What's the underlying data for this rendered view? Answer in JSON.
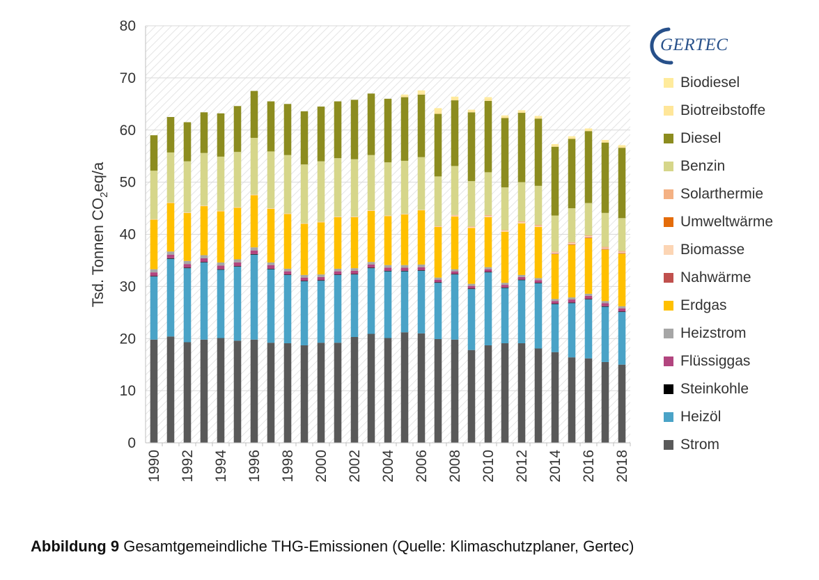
{
  "caption": {
    "bold": "Abbildung 9",
    "text": " Gesamtgemeindliche THG-Emissionen (Quelle: Klimaschutzplaner, Gertec)"
  },
  "logo": {
    "text": "GERTEC"
  },
  "chart_data": {
    "type": "bar",
    "stacked": true,
    "ylabel_main": "Tsd. Tonnen CO",
    "ylabel_sub": "2",
    "ylabel_tail": "eq/a",
    "ylim": [
      0,
      80
    ],
    "yticks": [
      0,
      10,
      20,
      30,
      40,
      50,
      60,
      70,
      80
    ],
    "grid": true,
    "legend_position": "right",
    "categories": [
      "1990",
      "1991",
      "1992",
      "1993",
      "1994",
      "1995",
      "1996",
      "1997",
      "1998",
      "1999",
      "2000",
      "2001",
      "2002",
      "2003",
      "2004",
      "2005",
      "2006",
      "2007",
      "2008",
      "2009",
      "2010",
      "2011",
      "2012",
      "2013",
      "2014",
      "2015",
      "2016",
      "2017",
      "2018"
    ],
    "xtick_labels": [
      "1990",
      "",
      "1992",
      "",
      "1994",
      "",
      "1996",
      "",
      "1998",
      "",
      "2000",
      "",
      "2002",
      "",
      "2004",
      "",
      "2006",
      "",
      "2008",
      "",
      "2010",
      "",
      "2012",
      "",
      "2014",
      "",
      "2016",
      "",
      "2018"
    ],
    "series": [
      {
        "name": "Strom",
        "color": "#595959",
        "values": [
          19.8,
          20.4,
          19.3,
          19.8,
          20.1,
          19.6,
          19.8,
          19.2,
          19.1,
          18.7,
          19.2,
          19.2,
          20.3,
          20.9,
          20.1,
          21.2,
          21.0,
          19.9,
          19.8,
          17.8,
          18.7,
          19.1,
          19.1,
          18.1,
          17.4,
          16.4,
          16.2,
          15.5,
          15.0
        ]
      },
      {
        "name": "Heizöl",
        "color": "#4aa3c7",
        "values": [
          12.1,
          14.9,
          14.2,
          14.8,
          13.1,
          14.2,
          16.3,
          14.1,
          13.1,
          12.3,
          11.9,
          13.0,
          12.0,
          12.6,
          12.8,
          11.7,
          12.0,
          10.8,
          12.5,
          11.7,
          14.0,
          10.6,
          12.1,
          12.5,
          9.2,
          10.4,
          11.3,
          10.6,
          10.1
        ]
      },
      {
        "name": "Steinkohle",
        "color": "#000000",
        "values": [
          0.1,
          0.1,
          0.1,
          0.1,
          0.1,
          0.1,
          0.1,
          0.1,
          0.1,
          0.1,
          0.1,
          0.1,
          0.1,
          0.1,
          0.1,
          0.1,
          0.1,
          0.1,
          0.1,
          0.1,
          0.1,
          0.1,
          0.1,
          0.1,
          0.1,
          0.1,
          0.1,
          0.1,
          0.1
        ]
      },
      {
        "name": "Flüssiggas",
        "color": "#b2457f",
        "values": [
          0.7,
          0.7,
          0.7,
          0.7,
          0.7,
          0.7,
          0.7,
          0.7,
          0.6,
          0.6,
          0.6,
          0.6,
          0.6,
          0.6,
          0.6,
          0.6,
          0.6,
          0.5,
          0.5,
          0.5,
          0.5,
          0.5,
          0.5,
          0.5,
          0.5,
          0.6,
          0.6,
          0.6,
          0.6
        ]
      },
      {
        "name": "Heizstrom",
        "color": "#a6a6a6",
        "values": [
          0.6,
          0.6,
          0.6,
          0.6,
          0.6,
          0.6,
          0.6,
          0.5,
          0.5,
          0.5,
          0.5,
          0.5,
          0.5,
          0.5,
          0.5,
          0.5,
          0.5,
          0.4,
          0.4,
          0.4,
          0.4,
          0.4,
          0.4,
          0.4,
          0.4,
          0.4,
          0.4,
          0.4,
          0.4
        ]
      },
      {
        "name": "Erdgas",
        "color": "#ffc000",
        "values": [
          9.5,
          9.3,
          9.2,
          9.4,
          9.8,
          9.9,
          10.0,
          10.3,
          10.5,
          9.8,
          10.0,
          9.9,
          9.8,
          9.8,
          9.4,
          9.7,
          10.4,
          9.7,
          10.1,
          10.7,
          9.6,
          9.8,
          9.9,
          9.8,
          8.6,
          10.1,
          10.7,
          9.9,
          10.1
        ]
      },
      {
        "name": "Nahwärme",
        "color": "#c0504d",
        "values": [
          0,
          0,
          0,
          0,
          0,
          0,
          0,
          0,
          0,
          0,
          0,
          0,
          0,
          0,
          0,
          0,
          0,
          0,
          0,
          0,
          0,
          0,
          0,
          0,
          0.1,
          0.1,
          0.1,
          0.1,
          0.1
        ]
      },
      {
        "name": "Biomasse",
        "color": "#fcd5b4",
        "values": [
          0.1,
          0.1,
          0.1,
          0.1,
          0.1,
          0.1,
          0.1,
          0.1,
          0.1,
          0.1,
          0.1,
          0.1,
          0.1,
          0.1,
          0.1,
          0.1,
          0.1,
          0.1,
          0.2,
          0.2,
          0.2,
          0.2,
          0.2,
          0.2,
          0.2,
          0.2,
          0.2,
          0.2,
          0.2
        ]
      },
      {
        "name": "Umweltwärme",
        "color": "#e46c0a",
        "values": [
          0,
          0,
          0,
          0,
          0,
          0,
          0,
          0,
          0,
          0,
          0,
          0,
          0,
          0,
          0,
          0,
          0,
          0,
          0,
          0,
          0,
          0,
          0,
          0,
          0,
          0,
          0,
          0,
          0
        ]
      },
      {
        "name": "Solarthermie",
        "color": "#f4b183",
        "values": [
          0,
          0,
          0,
          0,
          0,
          0,
          0,
          0,
          0,
          0,
          0,
          0,
          0,
          0,
          0,
          0,
          0,
          0.1,
          0.1,
          0.1,
          0.2,
          0.1,
          0.2,
          0.2,
          0.2,
          0.2,
          0.2,
          0.2,
          0.2
        ]
      },
      {
        "name": "Benzin",
        "color": "#d6d68a",
        "values": [
          9.3,
          9.6,
          9.8,
          10.1,
          10.4,
          10.6,
          10.9,
          10.9,
          11.2,
          11.3,
          11.6,
          11.2,
          11.0,
          10.6,
          10.2,
          10.2,
          10.1,
          9.5,
          9.4,
          8.7,
          8.2,
          8.2,
          7.5,
          7.5,
          6.9,
          6.5,
          6.2,
          6.5,
          6.3
        ]
      },
      {
        "name": "Diesel",
        "color": "#8c8c1f",
        "values": [
          6.8,
          6.8,
          7.5,
          7.8,
          8.3,
          8.8,
          9.0,
          9.6,
          9.8,
          10.2,
          10.5,
          10.9,
          11.4,
          11.8,
          12.2,
          12.2,
          12.0,
          12.0,
          12.6,
          13.2,
          13.7,
          13.3,
          13.3,
          12.9,
          13.2,
          13.3,
          13.8,
          13.5,
          13.5
        ]
      },
      {
        "name": "Biotreibstoffe",
        "color": "#ffe699",
        "values": [
          0,
          0,
          0,
          0,
          0,
          0,
          0,
          0,
          0,
          0,
          0,
          0,
          0,
          0,
          0,
          0.3,
          0.4,
          0.6,
          0.4,
          0.3,
          0.4,
          0.3,
          0.3,
          0.3,
          0.3,
          0.3,
          0.3,
          0.3,
          0.3
        ]
      },
      {
        "name": "Biodiesel",
        "color": "#ffeb9c",
        "values": [
          0,
          0,
          0,
          0,
          0,
          0,
          0,
          0,
          0,
          0,
          0,
          0,
          0,
          0,
          0,
          0.2,
          0.4,
          0.5,
          0.3,
          0.2,
          0.3,
          0.2,
          0.2,
          0.2,
          0.2,
          0.2,
          0.2,
          0.2,
          0.2
        ]
      }
    ],
    "legend_order": [
      "Biodiesel",
      "Biotreibstoffe",
      "Diesel",
      "Benzin",
      "Solarthermie",
      "Umweltwärme",
      "Biomasse",
      "Nahwärme",
      "Erdgas",
      "Heizstrom",
      "Flüssiggas",
      "Steinkohle",
      "Heizöl",
      "Strom"
    ]
  }
}
